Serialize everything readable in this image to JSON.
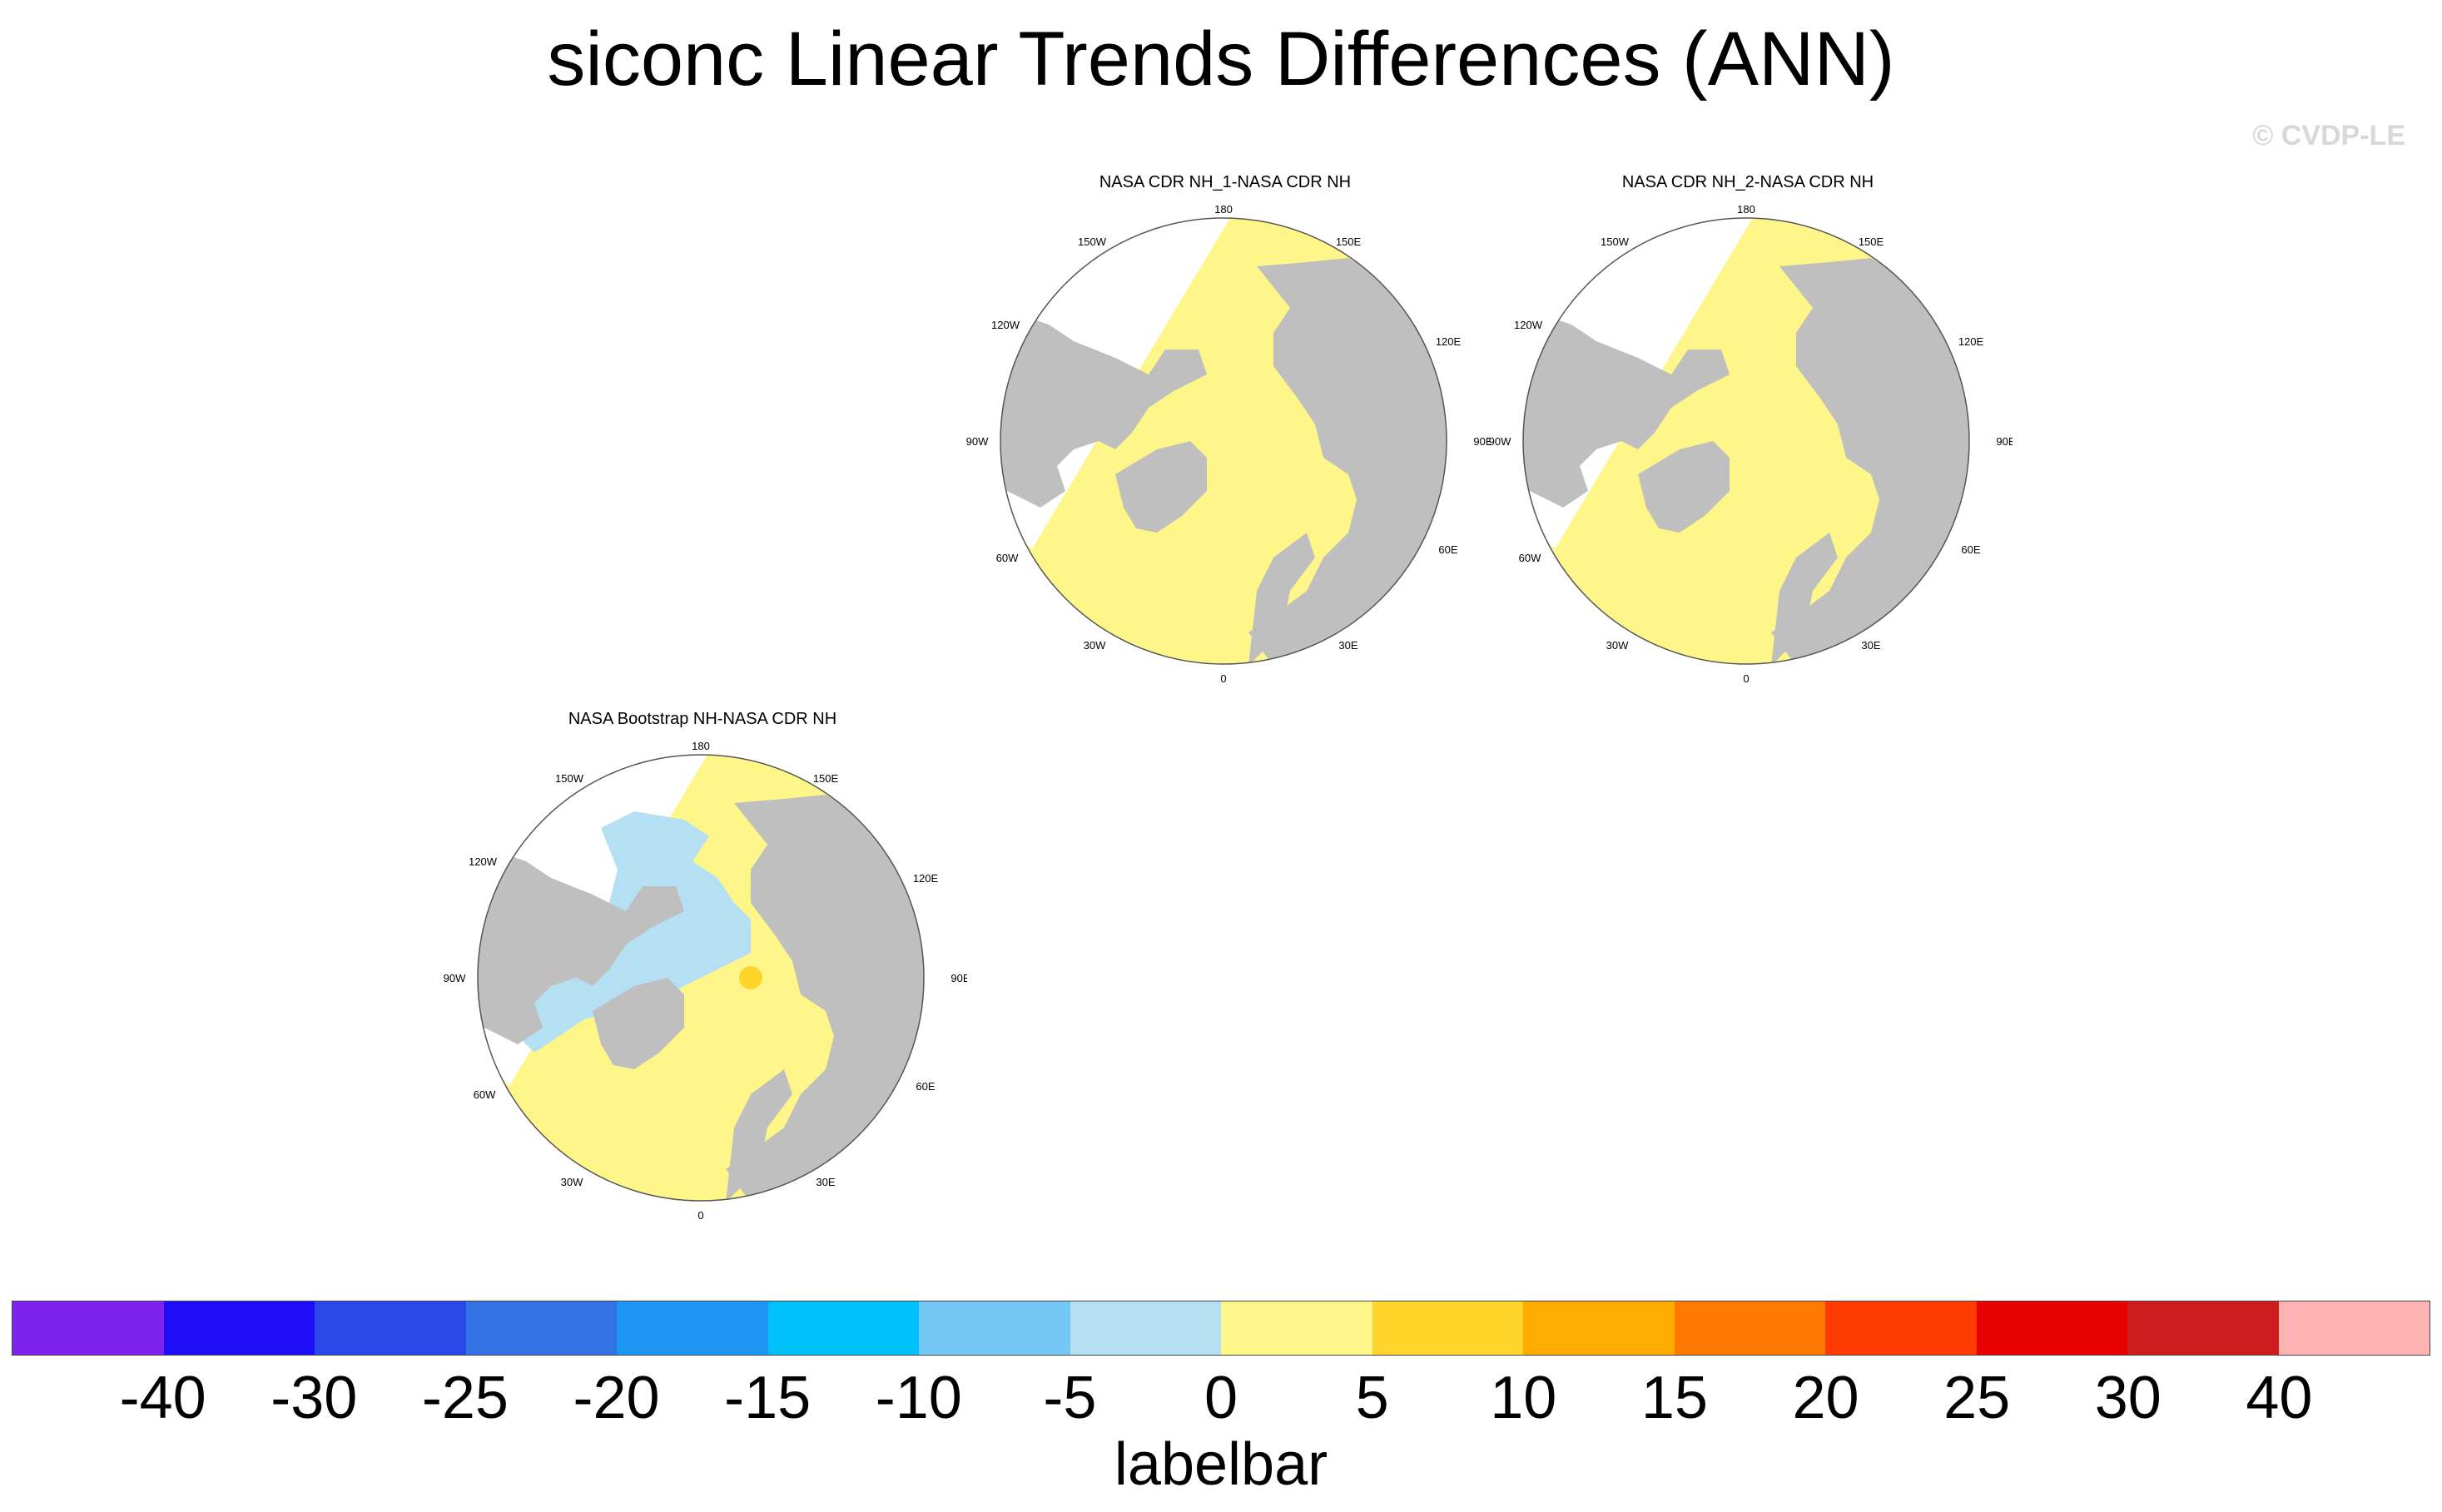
{
  "title": "siconc Linear Trends Differences (ANN)",
  "copyright": "© CVDP-LE",
  "panels": [
    {
      "title": "NASA CDR NH_1-NASA CDR NH",
      "lon_labels": {
        "top": "180",
        "tr": "150E",
        "rt": "120E",
        "right": "90E",
        "rb": "60E",
        "br": "30E",
        "bottom": "0",
        "bl": "30W",
        "lb": "60W",
        "left": "90W",
        "lt": "120W",
        "tl": "150W"
      },
      "dominant_value_class": "0 to 5"
    },
    {
      "title": "NASA CDR NH_2-NASA CDR NH",
      "lon_labels": {
        "top": "180",
        "tr": "150E",
        "rt": "120E",
        "right": "90E",
        "rb": "60E",
        "br": "30E",
        "bottom": "0",
        "bl": "30W",
        "lb": "60W",
        "left": "90W",
        "lt": "120W",
        "tl": "150W"
      },
      "dominant_value_class": "0 to 5"
    },
    {
      "title": "NASA Bootstrap NH-NASA CDR NH",
      "lon_labels": {
        "top": "180",
        "tr": "150E",
        "rt": "120E",
        "right": "90E",
        "rb": "60E",
        "br": "30E",
        "bottom": "0",
        "bl": "30W",
        "lb": "60W",
        "left": "90W",
        "lt": "120W",
        "tl": "150W"
      },
      "dominant_value_class": "-5 to 0 over central Arctic; 0 to 5 elsewhere"
    }
  ],
  "labelbar": {
    "caption": "labelbar",
    "ticks": [
      "-40",
      "-30",
      "-25",
      "-20",
      "-15",
      "-10",
      "-5",
      "0",
      "5",
      "10",
      "15",
      "20",
      "25",
      "30",
      "40"
    ],
    "colors": [
      "#7f22ee",
      "#1e0df5",
      "#2b49e8",
      "#3473e6",
      "#1e96f5",
      "#00c0fa",
      "#73c8f3",
      "#b5dff2",
      "#fff68a",
      "#ffd52b",
      "#ffab00",
      "#ff7a00",
      "#ff3a00",
      "#e80000",
      "#cd1d1d",
      "#ffb3b3"
    ]
  },
  "colors": {
    "land": "#bfbfbf",
    "ocean_missing": "#ffffff",
    "positive_small": "#fff68a",
    "negative_small": "#b5dff2",
    "positive_mid": "#ffd52b"
  }
}
